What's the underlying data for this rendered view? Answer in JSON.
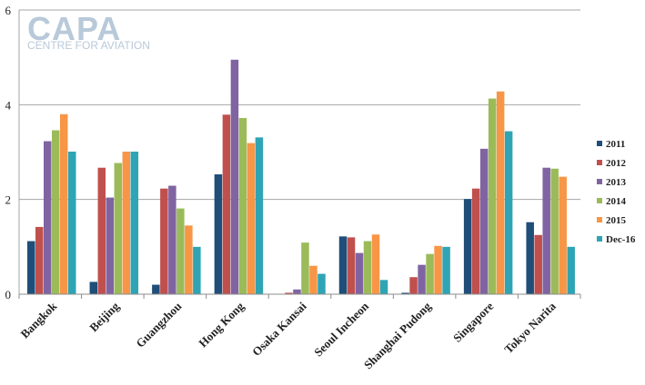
{
  "watermark": {
    "main": "CAPA",
    "sub": "CENTRE FOR AVIATION"
  },
  "chart_data": {
    "type": "bar",
    "categories": [
      "Bangkok",
      "Beijing",
      "Guangzhou",
      "Hong Kong",
      "Osaka Kansai",
      "Seoul Incheon",
      "Shanghai Pudong",
      "Singapore",
      "Tokyo Narita"
    ],
    "ylim": [
      0,
      6
    ],
    "yticks": [
      "0",
      "2",
      "4",
      "6"
    ],
    "grid": true,
    "legend_position": "right",
    "series": [
      {
        "name": "2011",
        "color": "#1f4e79",
        "values": [
          1.12,
          0.26,
          0.2,
          2.53,
          0.0,
          1.22,
          0.03,
          2.01,
          1.52
        ]
      },
      {
        "name": "2012",
        "color": "#c0504d",
        "values": [
          1.42,
          2.67,
          2.23,
          3.79,
          0.03,
          1.2,
          0.36,
          2.23,
          1.25
        ]
      },
      {
        "name": "2013",
        "color": "#8064a2",
        "values": [
          3.23,
          2.04,
          2.29,
          4.95,
          0.1,
          0.87,
          0.62,
          3.07,
          2.67
        ]
      },
      {
        "name": "2014",
        "color": "#9bbb59",
        "values": [
          3.46,
          2.77,
          1.81,
          3.72,
          1.09,
          1.12,
          0.85,
          4.13,
          2.65
        ]
      },
      {
        "name": "2015",
        "color": "#f79646",
        "values": [
          3.8,
          3.01,
          1.45,
          3.19,
          0.6,
          1.26,
          1.02,
          4.28,
          2.48
        ]
      },
      {
        "name": "Dec-16",
        "color": "#2fa4b4",
        "values": [
          3.01,
          3.01,
          1.0,
          3.31,
          0.43,
          0.3,
          1.0,
          3.44,
          1.0
        ]
      }
    ]
  }
}
